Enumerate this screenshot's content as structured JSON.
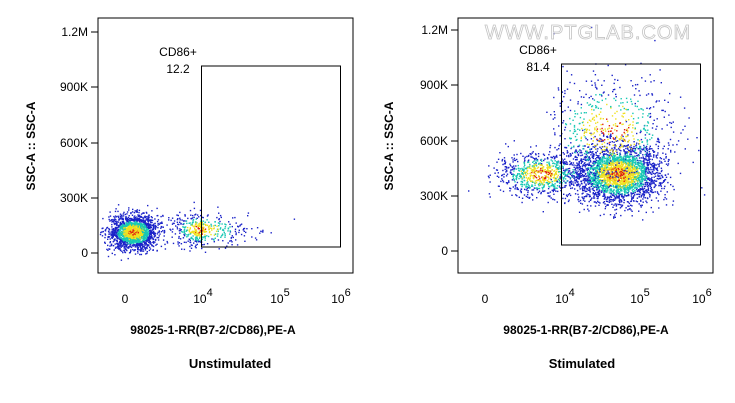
{
  "watermark": "WWW.PTGLAB.COM",
  "colors": {
    "low": "#1a22c8",
    "mid": "#18c8b4",
    "high": "#f0e020",
    "peak": "#e02010"
  },
  "chart_data": [
    {
      "type": "scatter",
      "subtype": "flow-cytometry-density",
      "caption": "Unstimulated",
      "xlabel": "98025-1-RR(B7-2/CD86),PE-A",
      "ylabel": "SSC-A :: SSC-A",
      "x_ticks": [
        "0",
        "10",
        "10",
        "10"
      ],
      "x_tick_exponents": [
        "",
        "4",
        "5",
        "6"
      ],
      "y_ticks": [
        "0",
        "300K",
        "600K",
        "900K",
        "1.2M"
      ],
      "y_tick_values": [
        0,
        300000,
        600000,
        900000,
        1200000
      ],
      "ylim": [
        -50000,
        1270000
      ],
      "gate": {
        "name": "CD86+",
        "percent": "12.2",
        "x_range": [
          10000,
          1000000
        ],
        "y_range": [
          30000,
          1010000
        ]
      },
      "populations": [
        {
          "x_center_log": 2.2,
          "y_center": 115000,
          "x_spread": 0.3,
          "y_spread": 45000,
          "count": 1900
        },
        {
          "x_center_log": 3.9,
          "y_center": 130000,
          "x_spread": 0.35,
          "y_spread": 45000,
          "count": 420
        }
      ]
    },
    {
      "type": "scatter",
      "subtype": "flow-cytometry-density",
      "caption": "Stimulated",
      "xlabel": "98025-1-RR(B7-2/CD86),PE-A",
      "ylabel": "SSC-A :: SSC-A",
      "x_ticks": [
        "0",
        "10",
        "10",
        "10"
      ],
      "x_tick_exponents": [
        "",
        "4",
        "5",
        "6"
      ],
      "y_ticks": [
        "0",
        "300K",
        "600K",
        "900K",
        "1.2M"
      ],
      "y_tick_values": [
        0,
        300000,
        600000,
        900000,
        1200000
      ],
      "ylim": [
        -50000,
        1270000
      ],
      "gate": {
        "name": "CD86+",
        "percent": "81.4",
        "x_range": [
          10000,
          1000000
        ],
        "y_range": [
          30000,
          1010000
        ]
      },
      "populations": [
        {
          "x_center_log": 4.7,
          "y_center": 420000,
          "x_spread": 0.3,
          "y_spread": 80000,
          "count": 2600
        },
        {
          "x_center_log": 3.4,
          "y_center": 420000,
          "x_spread": 0.55,
          "y_spread": 60000,
          "count": 800
        },
        {
          "x_center_log": 4.6,
          "y_center": 650000,
          "x_spread": 0.45,
          "y_spread": 150000,
          "count": 600
        }
      ]
    }
  ]
}
